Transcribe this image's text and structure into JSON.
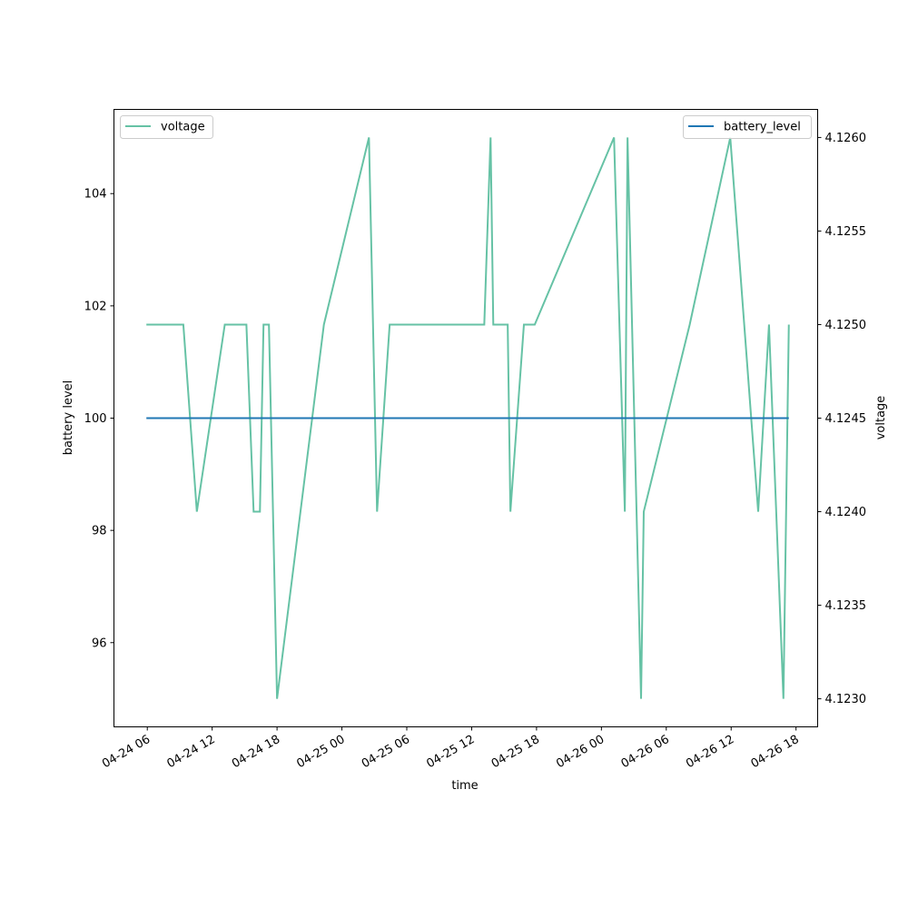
{
  "chart_data": {
    "type": "line",
    "xlabel": "time",
    "ylabel_left": "battery level",
    "ylabel_right": "voltage",
    "x_ticks": [
      "04-24 06",
      "04-24 12",
      "04-24 18",
      "04-25 00",
      "04-25 06",
      "04-25 12",
      "04-25 18",
      "04-26 00",
      "04-26 06",
      "04-26 12",
      "04-26 18"
    ],
    "yleft_ticks": [
      "96",
      "98",
      "100",
      "102",
      "104"
    ],
    "yright_ticks": [
      "4.1230",
      "4.1235",
      "4.1240",
      "4.1245",
      "4.1250",
      "4.1255",
      "4.1260"
    ],
    "xlim": [
      "2024-04-24 02:55",
      "2024-04-26 20:00"
    ],
    "ylim_left": [
      94.5,
      105.5
    ],
    "ylim_right": [
      4.12285,
      4.12615
    ],
    "grid": false,
    "series": [
      {
        "name": "battery_level",
        "axis": "left",
        "color": "#1f77b4",
        "legend": "top-right",
        "points": [
          [
            "2024-04-24 05:55",
            100
          ],
          [
            "2024-04-26 17:20",
            100
          ]
        ]
      },
      {
        "name": "voltage",
        "axis": "right",
        "color": "#66c2a5",
        "legend": "top-left",
        "points": [
          [
            "2024-04-24 05:55",
            4.125
          ],
          [
            "2024-04-24 09:20",
            4.125
          ],
          [
            "2024-04-24 10:35",
            4.124
          ],
          [
            "2024-04-24 13:10",
            4.125
          ],
          [
            "2024-04-24 15:10",
            4.125
          ],
          [
            "2024-04-24 15:50",
            4.124
          ],
          [
            "2024-04-24 16:25",
            4.124
          ],
          [
            "2024-04-24 16:45",
            4.125
          ],
          [
            "2024-04-24 17:15",
            4.125
          ],
          [
            "2024-04-24 18:00",
            4.123
          ],
          [
            "2024-04-24 22:20",
            4.125
          ],
          [
            "2024-04-25 02:30",
            4.126
          ],
          [
            "2024-04-25 03:15",
            4.124
          ],
          [
            "2024-04-25 04:25",
            4.125
          ],
          [
            "2024-04-25 13:10",
            4.125
          ],
          [
            "2024-04-25 13:45",
            4.126
          ],
          [
            "2024-04-25 14:00",
            4.125
          ],
          [
            "2024-04-25 15:20",
            4.125
          ],
          [
            "2024-04-25 15:35",
            4.124
          ],
          [
            "2024-04-25 16:50",
            4.125
          ],
          [
            "2024-04-25 17:50",
            4.125
          ],
          [
            "2024-04-26 01:10",
            4.126
          ],
          [
            "2024-04-26 02:10",
            4.124
          ],
          [
            "2024-04-26 02:25",
            4.126
          ],
          [
            "2024-04-26 03:40",
            4.123
          ],
          [
            "2024-04-26 03:55",
            4.124
          ],
          [
            "2024-04-26 08:10",
            4.125
          ],
          [
            "2024-04-26 11:55",
            4.126
          ],
          [
            "2024-04-26 14:30",
            4.124
          ],
          [
            "2024-04-26 15:30",
            4.125
          ],
          [
            "2024-04-26 16:50",
            4.123
          ],
          [
            "2024-04-26 17:20",
            4.125
          ]
        ]
      }
    ]
  }
}
